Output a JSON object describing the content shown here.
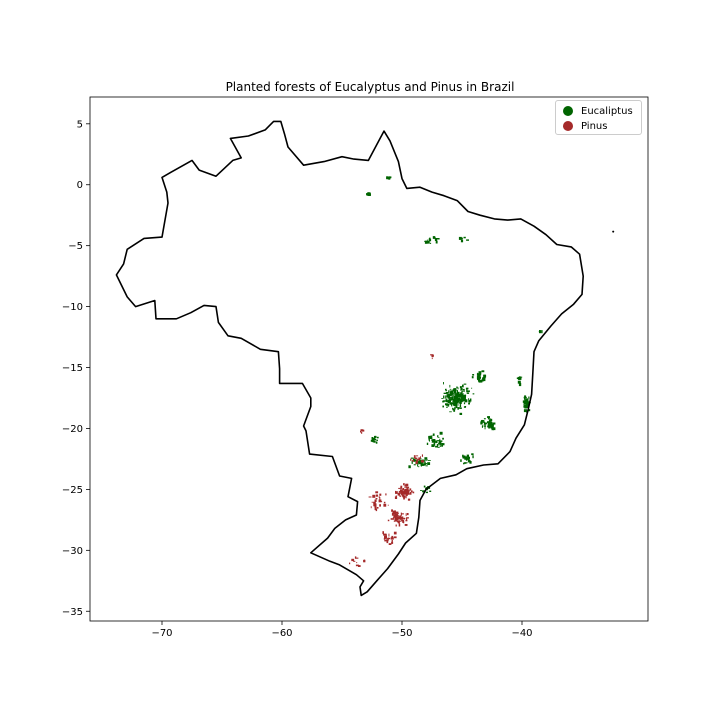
{
  "figure": {
    "title": "Planted forests of Eucalyptus and Pinus in Brazil"
  },
  "axes": {
    "x_ticks": [
      -70,
      -60,
      -50,
      -40
    ],
    "y_ticks": [
      5,
      0,
      -5,
      -10,
      -15,
      -20,
      -25,
      -30,
      -35
    ],
    "xlim": [
      -76,
      -29.5
    ],
    "ylim": [
      -35.8,
      7.2
    ],
    "grid": false
  },
  "legend": {
    "placement": "top-right",
    "items": [
      {
        "label": "Eucaliptus",
        "color": "#006400"
      },
      {
        "label": "Pinus",
        "color": "#a52a2a"
      }
    ]
  },
  "map": {
    "boundary": "Brazil",
    "boundary_color": "#000000"
  },
  "chart_data": {
    "type": "scatter",
    "title": "Planted forests of Eucalyptus and Pinus in Brazil",
    "xlabel": "",
    "ylabel": "",
    "xlim": [
      -76,
      -29.5
    ],
    "ylim": [
      -35.8,
      7.2
    ],
    "series": [
      {
        "name": "Eucaliptus",
        "color": "#006400",
        "clusters": [
          {
            "lon": -45.5,
            "lat": -17.5,
            "spread_lon": 1.6,
            "spread_lat": 1.4,
            "density": 170
          },
          {
            "lon": -42.8,
            "lat": -19.6,
            "spread_lon": 0.7,
            "spread_lat": 0.8,
            "density": 40
          },
          {
            "lon": -43.5,
            "lat": -15.8,
            "spread_lon": 0.8,
            "spread_lat": 0.6,
            "density": 30
          },
          {
            "lon": -39.6,
            "lat": -18.0,
            "spread_lon": 0.4,
            "spread_lat": 0.9,
            "density": 35
          },
          {
            "lon": -47.2,
            "lat": -21.0,
            "spread_lon": 1.2,
            "spread_lat": 0.8,
            "density": 35
          },
          {
            "lon": -48.5,
            "lat": -22.8,
            "spread_lon": 1.1,
            "spread_lat": 0.7,
            "density": 40
          },
          {
            "lon": -44.5,
            "lat": -22.5,
            "spread_lon": 0.8,
            "spread_lat": 0.5,
            "density": 20
          },
          {
            "lon": -52.3,
            "lat": -21.0,
            "spread_lon": 0.4,
            "spread_lat": 0.4,
            "density": 15
          },
          {
            "lon": -52.8,
            "lat": -0.8,
            "spread_lon": 0.3,
            "spread_lat": 0.15,
            "density": 8
          },
          {
            "lon": -51.1,
            "lat": 0.6,
            "spread_lon": 0.2,
            "spread_lat": 0.15,
            "density": 6
          },
          {
            "lon": -47.5,
            "lat": -4.6,
            "spread_lon": 0.9,
            "spread_lat": 0.4,
            "density": 14
          },
          {
            "lon": -45.0,
            "lat": -4.5,
            "spread_lon": 0.5,
            "spread_lat": 0.3,
            "density": 6
          },
          {
            "lon": -38.5,
            "lat": -12.0,
            "spread_lon": 0.2,
            "spread_lat": 0.2,
            "density": 4
          },
          {
            "lon": -48.0,
            "lat": -25.0,
            "spread_lon": 0.6,
            "spread_lat": 0.4,
            "density": 10
          },
          {
            "lon": -40.2,
            "lat": -16.0,
            "spread_lon": 0.3,
            "spread_lat": 0.5,
            "density": 10
          }
        ]
      },
      {
        "name": "Pinus",
        "color": "#a52a2a",
        "clusters": [
          {
            "lon": -49.8,
            "lat": -25.2,
            "spread_lon": 1.0,
            "spread_lat": 0.8,
            "density": 60
          },
          {
            "lon": -50.3,
            "lat": -27.3,
            "spread_lon": 1.1,
            "spread_lat": 0.9,
            "density": 60
          },
          {
            "lon": -52.0,
            "lat": -26.0,
            "spread_lon": 1.0,
            "spread_lat": 1.0,
            "density": 25
          },
          {
            "lon": -51.0,
            "lat": -29.0,
            "spread_lon": 1.0,
            "spread_lat": 0.8,
            "density": 20
          },
          {
            "lon": -53.8,
            "lat": -31.0,
            "spread_lon": 1.0,
            "spread_lat": 0.8,
            "density": 10
          },
          {
            "lon": -48.8,
            "lat": -22.5,
            "spread_lon": 0.9,
            "spread_lat": 0.6,
            "density": 15
          },
          {
            "lon": -53.3,
            "lat": -20.2,
            "spread_lon": 0.3,
            "spread_lat": 0.3,
            "density": 6
          },
          {
            "lon": -47.5,
            "lat": -14.1,
            "spread_lon": 0.2,
            "spread_lat": 0.2,
            "density": 4
          }
        ]
      }
    ],
    "boundary_lonlat": [
      [
        -60.1,
        5.2
      ],
      [
        -59.8,
        4.2
      ],
      [
        -59.5,
        3.1
      ],
      [
        -58.2,
        1.6
      ],
      [
        -56.5,
        1.9
      ],
      [
        -55.0,
        2.3
      ],
      [
        -54.0,
        2.1
      ],
      [
        -52.8,
        2.0
      ],
      [
        -51.5,
        4.4
      ],
      [
        -51.0,
        3.6
      ],
      [
        -50.3,
        1.9
      ],
      [
        -50.0,
        0.5
      ],
      [
        -49.6,
        -0.3
      ],
      [
        -48.5,
        -0.2
      ],
      [
        -47.5,
        -0.6
      ],
      [
        -46.5,
        -0.9
      ],
      [
        -45.4,
        -1.3
      ],
      [
        -44.5,
        -2.2
      ],
      [
        -43.5,
        -2.5
      ],
      [
        -42.3,
        -2.8
      ],
      [
        -41.2,
        -2.9
      ],
      [
        -40.1,
        -2.8
      ],
      [
        -39.0,
        -3.4
      ],
      [
        -38.0,
        -4.1
      ],
      [
        -37.1,
        -4.9
      ],
      [
        -35.9,
        -5.1
      ],
      [
        -35.2,
        -5.7
      ],
      [
        -34.9,
        -7.5
      ],
      [
        -35.0,
        -9.0
      ],
      [
        -35.7,
        -9.8
      ],
      [
        -36.7,
        -10.6
      ],
      [
        -37.6,
        -11.6
      ],
      [
        -38.6,
        -12.8
      ],
      [
        -39.0,
        -13.7
      ],
      [
        -39.1,
        -15.5
      ],
      [
        -39.2,
        -17.2
      ],
      [
        -39.5,
        -18.5
      ],
      [
        -39.8,
        -19.7
      ],
      [
        -40.5,
        -20.8
      ],
      [
        -41.0,
        -21.9
      ],
      [
        -42.0,
        -22.9
      ],
      [
        -43.2,
        -23.0
      ],
      [
        -44.6,
        -23.3
      ],
      [
        -45.5,
        -23.8
      ],
      [
        -46.8,
        -24.1
      ],
      [
        -48.0,
        -25.0
      ],
      [
        -48.5,
        -25.9
      ],
      [
        -48.6,
        -27.3
      ],
      [
        -48.8,
        -28.6
      ],
      [
        -49.7,
        -29.4
      ],
      [
        -50.3,
        -30.3
      ],
      [
        -51.2,
        -31.5
      ],
      [
        -52.1,
        -32.5
      ],
      [
        -52.9,
        -33.4
      ],
      [
        -53.4,
        -33.7
      ],
      [
        -53.5,
        -33.0
      ],
      [
        -53.2,
        -32.5
      ],
      [
        -53.8,
        -32.0
      ],
      [
        -55.2,
        -31.2
      ],
      [
        -56.0,
        -30.9
      ],
      [
        -57.6,
        -30.2
      ],
      [
        -56.2,
        -29.0
      ],
      [
        -55.6,
        -28.2
      ],
      [
        -54.7,
        -27.5
      ],
      [
        -53.8,
        -27.1
      ],
      [
        -53.7,
        -26.0
      ],
      [
        -54.5,
        -25.6
      ],
      [
        -54.2,
        -24.1
      ],
      [
        -55.2,
        -23.9
      ],
      [
        -55.8,
        -22.3
      ],
      [
        -57.7,
        -22.1
      ],
      [
        -58.0,
        -20.2
      ],
      [
        -58.2,
        -19.8
      ],
      [
        -57.6,
        -18.2
      ],
      [
        -57.6,
        -17.5
      ],
      [
        -58.3,
        -16.3
      ],
      [
        -60.2,
        -16.3
      ],
      [
        -60.2,
        -15.1
      ],
      [
        -60.3,
        -13.7
      ],
      [
        -61.8,
        -13.5
      ],
      [
        -63.4,
        -12.6
      ],
      [
        -64.5,
        -12.4
      ],
      [
        -65.3,
        -11.3
      ],
      [
        -65.5,
        -10.0
      ],
      [
        -66.5,
        -9.9
      ],
      [
        -67.6,
        -10.5
      ],
      [
        -68.8,
        -11.0
      ],
      [
        -70.5,
        -11.0
      ],
      [
        -70.6,
        -9.5
      ],
      [
        -72.2,
        -10.0
      ],
      [
        -72.9,
        -9.2
      ],
      [
        -73.8,
        -7.4
      ],
      [
        -73.2,
        -6.5
      ],
      [
        -72.9,
        -5.3
      ],
      [
        -71.5,
        -4.4
      ],
      [
        -70.0,
        -4.3
      ],
      [
        -69.5,
        -1.5
      ],
      [
        -69.6,
        -0.6
      ],
      [
        -70.0,
        0.6
      ],
      [
        -69.3,
        1.0
      ],
      [
        -67.5,
        2.0
      ],
      [
        -66.9,
        1.2
      ],
      [
        -65.5,
        0.7
      ],
      [
        -64.1,
        2.0
      ],
      [
        -63.4,
        2.2
      ],
      [
        -64.3,
        3.8
      ],
      [
        -62.8,
        4.0
      ],
      [
        -61.4,
        4.5
      ],
      [
        -60.7,
        5.2
      ],
      [
        -60.1,
        5.2
      ]
    ],
    "islands_lonlat": [
      {
        "lon": -32.4,
        "lat": -3.85
      }
    ]
  }
}
